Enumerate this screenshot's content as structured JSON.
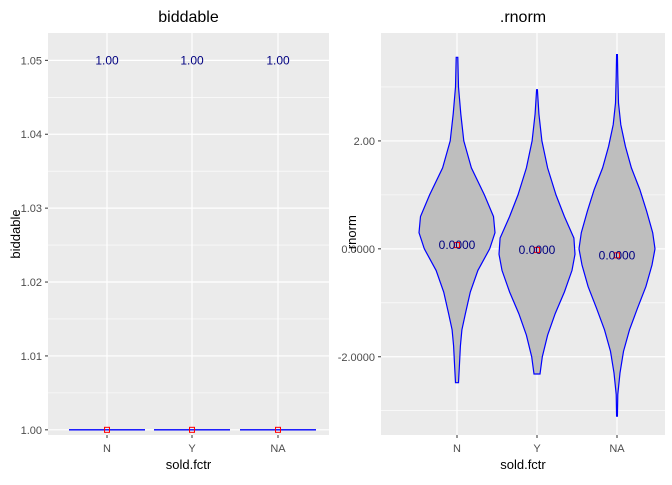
{
  "chart_data": [
    {
      "type": "violin",
      "title": "biddable",
      "xlabel": "sold.fctr",
      "ylabel": "biddable",
      "categories": [
        "N",
        "Y",
        "NA"
      ],
      "ylim": [
        0.9993,
        1.0537
      ],
      "y_ticks": [
        1.0,
        1.01,
        1.02,
        1.03,
        1.04,
        1.05
      ],
      "y_tick_labels": [
        "1.00",
        "1.01",
        "1.02",
        "1.03",
        "1.04",
        "1.05"
      ],
      "series": [
        {
          "category": "N",
          "min": 1.0,
          "max": 1.0,
          "mean": 1.0,
          "label": "1.00"
        },
        {
          "category": "Y",
          "min": 1.0,
          "max": 1.0,
          "mean": 1.0,
          "label": "1.00"
        },
        {
          "category": "NA",
          "min": 1.0,
          "max": 1.0,
          "mean": 1.0,
          "label": "1.00"
        }
      ],
      "label_y": 1.05,
      "grid": true,
      "colors": {
        "panel": "#ebebeb",
        "outline": "#0000ff",
        "fill": "#bebebe",
        "mean": "#ff0000",
        "label": "#000080"
      }
    },
    {
      "type": "violin",
      "title": ".rnorm",
      "xlabel": "sold.fctr",
      "ylabel": ".rnorm",
      "categories": [
        "N",
        "Y",
        "NA"
      ],
      "ylim": [
        -3.45,
        4.0
      ],
      "y_ticks": [
        -2.0,
        0.0,
        2.0
      ],
      "y_tick_labels": [
        "-2.0000",
        "0.0000",
        "2.00"
      ],
      "series": [
        {
          "category": "N",
          "mean": 0.07,
          "label": "0.0000",
          "density": [
            [
              -2.48,
              0.04
            ],
            [
              -2.2,
              0.06
            ],
            [
              -1.8,
              0.09
            ],
            [
              -1.5,
              0.13
            ],
            [
              -1.2,
              0.22
            ],
            [
              -0.8,
              0.35
            ],
            [
              -0.4,
              0.55
            ],
            [
              0.0,
              0.86
            ],
            [
              0.3,
              1.0
            ],
            [
              0.6,
              0.96
            ],
            [
              1.0,
              0.72
            ],
            [
              1.5,
              0.38
            ],
            [
              2.0,
              0.18
            ],
            [
              2.5,
              0.1
            ],
            [
              3.0,
              0.04
            ],
            [
              3.55,
              0.02
            ]
          ]
        },
        {
          "category": "Y",
          "mean": -0.02,
          "label": "0.0000",
          "density": [
            [
              -2.32,
              0.08
            ],
            [
              -2.0,
              0.14
            ],
            [
              -1.6,
              0.28
            ],
            [
              -1.2,
              0.48
            ],
            [
              -0.8,
              0.72
            ],
            [
              -0.4,
              0.92
            ],
            [
              -0.1,
              1.0
            ],
            [
              0.2,
              0.97
            ],
            [
              0.6,
              0.72
            ],
            [
              1.0,
              0.5
            ],
            [
              1.5,
              0.28
            ],
            [
              2.0,
              0.13
            ],
            [
              2.5,
              0.05
            ],
            [
              2.95,
              0.01
            ]
          ]
        },
        {
          "category": "NA",
          "mean": -0.12,
          "label": "0.0000",
          "density": [
            [
              -3.1,
              0.01
            ],
            [
              -2.7,
              0.02
            ],
            [
              -2.3,
              0.08
            ],
            [
              -1.9,
              0.17
            ],
            [
              -1.5,
              0.33
            ],
            [
              -1.1,
              0.54
            ],
            [
              -0.7,
              0.76
            ],
            [
              -0.3,
              0.92
            ],
            [
              0.0,
              1.0
            ],
            [
              0.3,
              0.94
            ],
            [
              0.7,
              0.78
            ],
            [
              1.1,
              0.6
            ],
            [
              1.5,
              0.38
            ],
            [
              1.9,
              0.22
            ],
            [
              2.3,
              0.1
            ],
            [
              2.7,
              0.04
            ],
            [
              3.2,
              0.02
            ],
            [
              3.6,
              0.01
            ]
          ]
        }
      ],
      "label_y": 0.0,
      "grid": true,
      "colors": {
        "panel": "#ebebeb",
        "outline": "#0000ff",
        "fill": "#bebebe",
        "mean": "#ff0000",
        "label": "#000080"
      }
    }
  ]
}
